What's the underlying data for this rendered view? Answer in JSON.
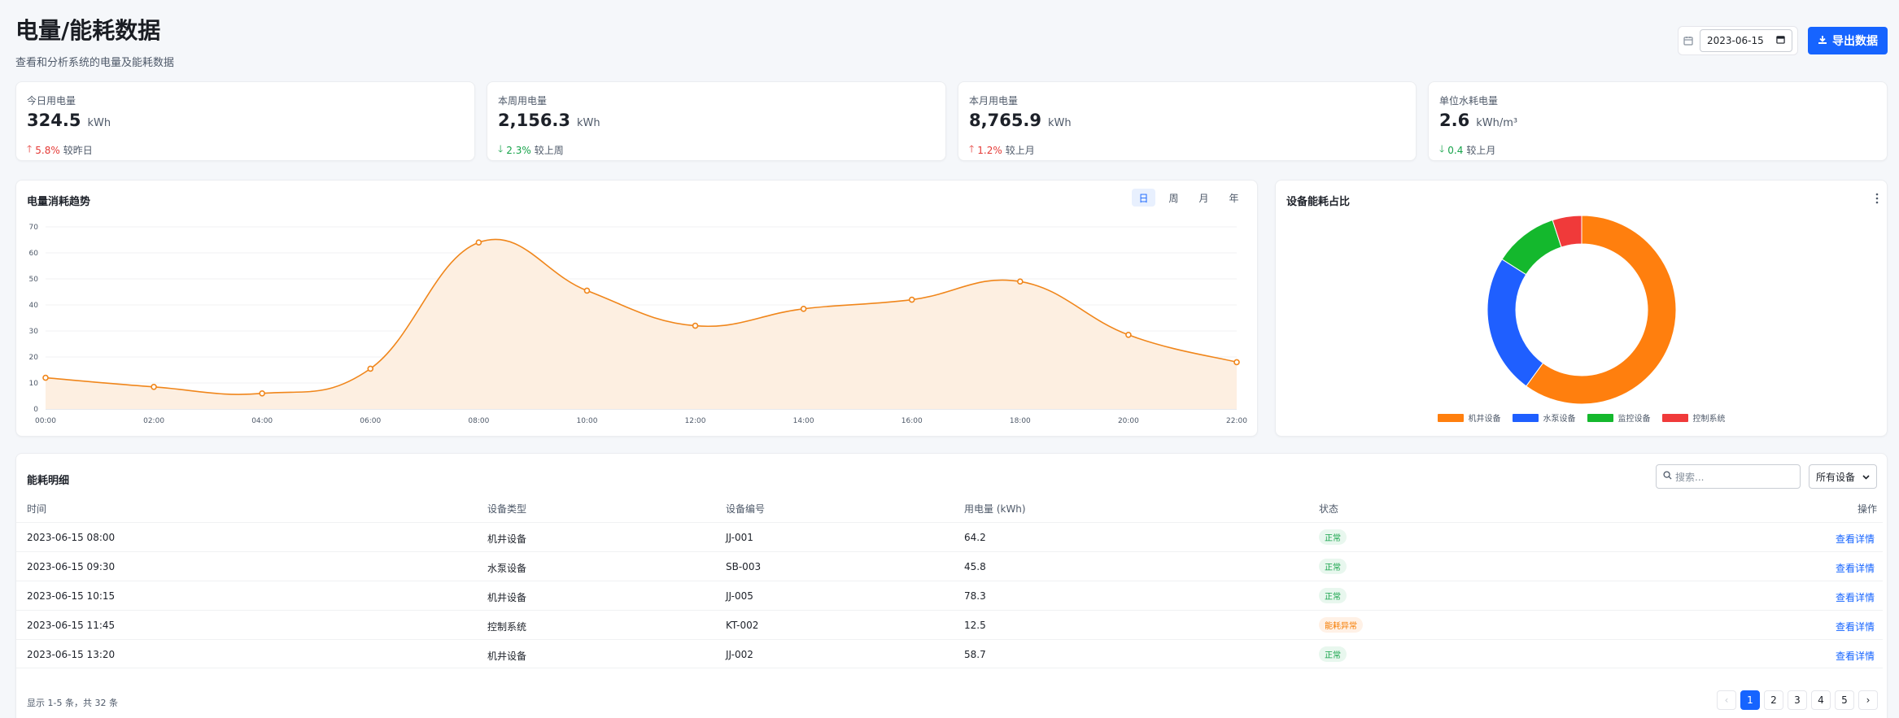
{
  "header": {
    "title": "电量/能耗数据",
    "subtitle": "查看和分析系统的电量及能耗数据",
    "date_value": "2023-06-15",
    "export_label": "导出数据"
  },
  "stats": [
    {
      "label": "今日用电量",
      "value": "324.5",
      "unit": "kWh",
      "change": "5.8%",
      "direction": "up",
      "compare": "较昨日"
    },
    {
      "label": "本周用电量",
      "value": "2,156.3",
      "unit": "kWh",
      "change": "2.3%",
      "direction": "down",
      "compare": "较上周"
    },
    {
      "label": "本月用电量",
      "value": "8,765.9",
      "unit": "kWh",
      "change": "1.2%",
      "direction": "up",
      "compare": "较上月"
    },
    {
      "label": "单位水耗电量",
      "value": "2.6",
      "unit": "kWh/m³",
      "change": "0.4",
      "direction": "down",
      "compare": "较上月"
    }
  ],
  "trend": {
    "title": "电量消耗趋势",
    "tabs": [
      "日",
      "周",
      "月",
      "年"
    ],
    "active_tab": "日"
  },
  "pie": {
    "title": "设备能耗占比"
  },
  "chart_data": [
    {
      "type": "area",
      "title": "电量消耗趋势",
      "x": [
        "00:00",
        "02:00",
        "04:00",
        "06:00",
        "08:00",
        "10:00",
        "12:00",
        "14:00",
        "16:00",
        "18:00",
        "20:00",
        "22:00"
      ],
      "values": [
        12,
        8.5,
        6,
        15.5,
        64,
        45.5,
        32,
        38.5,
        42,
        49,
        28.5,
        18
      ],
      "ylim": [
        0,
        70
      ],
      "yticks": [
        0,
        10,
        20,
        30,
        40,
        50,
        60,
        70
      ],
      "grid": true,
      "color": "#f0861b",
      "fill": "#fdefe1"
    },
    {
      "type": "pie",
      "title": "设备能耗占比",
      "donut": true,
      "categories": [
        "机井设备",
        "水泵设备",
        "监控设备",
        "控制系统"
      ],
      "values": [
        60,
        24,
        11,
        5
      ],
      "colors": [
        "#ff7f0e",
        "#1f5fff",
        "#14b82d",
        "#f03a3a"
      ],
      "legend": "bottom"
    }
  ],
  "table": {
    "title": "能耗明细",
    "search_placeholder": "搜索...",
    "filter_value": "所有设备",
    "columns": [
      "时间",
      "设备类型",
      "设备编号",
      "用电量 (kWh)",
      "状态",
      "操作"
    ],
    "rows": [
      {
        "time": "2023-06-15 08:00",
        "type": "机井设备",
        "id": "JJ-001",
        "power": "64.2",
        "status": "正常",
        "status_kind": "ok",
        "action": "查看详情"
      },
      {
        "time": "2023-06-15 09:30",
        "type": "水泵设备",
        "id": "SB-003",
        "power": "45.8",
        "status": "正常",
        "status_kind": "ok",
        "action": "查看详情"
      },
      {
        "time": "2023-06-15 10:15",
        "type": "机井设备",
        "id": "JJ-005",
        "power": "78.3",
        "status": "正常",
        "status_kind": "ok",
        "action": "查看详情"
      },
      {
        "time": "2023-06-15 11:45",
        "type": "控制系统",
        "id": "KT-002",
        "power": "12.5",
        "status": "能耗异常",
        "status_kind": "warn",
        "action": "查看详情"
      },
      {
        "time": "2023-06-15 13:20",
        "type": "机井设备",
        "id": "JJ-002",
        "power": "58.7",
        "status": "正常",
        "status_kind": "ok",
        "action": "查看详情"
      }
    ],
    "footer": "显示 1-5 条，共 32 条",
    "pages": [
      "1",
      "2",
      "3",
      "4",
      "5"
    ],
    "current_page": "1"
  }
}
